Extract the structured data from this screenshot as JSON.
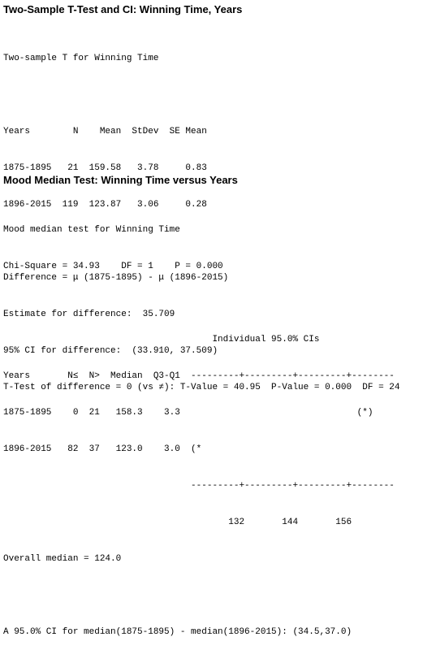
{
  "ttest": {
    "heading": "Two-Sample T-Test and CI: Winning Time, Years",
    "lines": [
      "Two-sample T for Winning Time",
      "",
      "Years        N    Mean  StDev  SE Mean",
      "1875-1895   21  159.58   3.78     0.83",
      "1896-2015  119  123.87   3.06     0.28",
      "",
      "Difference = μ (1875-1895) - μ (1896-2015)",
      "Estimate for difference:  35.709",
      "95% CI for difference:  (33.910, 37.509)",
      "T-Test of difference = 0 (vs ≠): T-Value = 40.95  P-Value = 0.000  DF = 24"
    ]
  },
  "mood": {
    "heading": "Mood Median Test: Winning Time versus Years",
    "lines": [
      "Mood median test for Winning Time",
      "Chi-Square = 34.93    DF = 1    P = 0.000",
      "",
      "                                       Individual 95.0% CIs",
      "Years       N≤  N>  Median  Q3-Q1  ---------+---------+---------+--------",
      "1875-1895    0  21   158.3    3.3                                 (*)",
      "1896-2015   82  37   123.0    3.0  (*",
      "                                   ---------+---------+---------+--------",
      "                                          132       144       156",
      "Overall median = 124.0",
      "",
      "A 95.0% CI for median(1875-1895) - median(1896-2015): (34.5,37.0)"
    ]
  }
}
